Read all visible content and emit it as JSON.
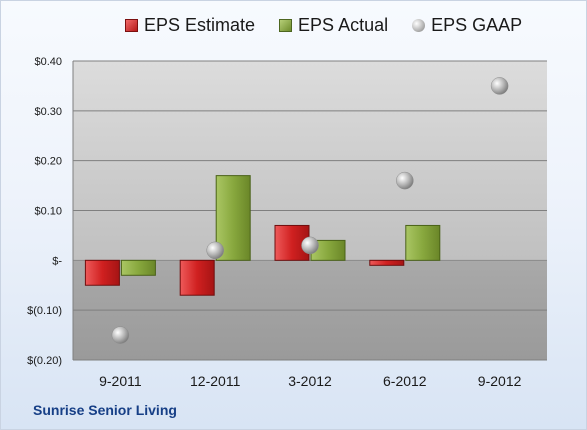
{
  "chart_data": {
    "type": "bar",
    "categories": [
      "9-2011",
      "12-2011",
      "3-2012",
      "6-2012",
      "9-2012"
    ],
    "series": [
      {
        "name": "EPS Estimate",
        "kind": "bar",
        "color": "#c8262a",
        "values": [
          -0.05,
          -0.07,
          0.07,
          -0.01,
          null
        ]
      },
      {
        "name": "EPS Actual",
        "kind": "bar",
        "color": "#88a83e",
        "values": [
          -0.03,
          0.17,
          0.04,
          0.07,
          null
        ]
      },
      {
        "name": "EPS GAAP",
        "kind": "marker",
        "color": "#a8a8a8",
        "values": [
          -0.15,
          0.02,
          0.03,
          0.16,
          0.35
        ]
      }
    ],
    "ylim": [
      -0.2,
      0.4
    ],
    "yticks": [
      {
        "value": 0.4,
        "label": "$0.40"
      },
      {
        "value": 0.3,
        "label": "$0.30"
      },
      {
        "value": 0.2,
        "label": "$0.20"
      },
      {
        "value": 0.1,
        "label": "$0.10"
      },
      {
        "value": 0,
        "label": "$-"
      },
      {
        "value": -0.1,
        "label": "$(0.10)"
      },
      {
        "value": -0.2,
        "label": "$(0.20)"
      }
    ],
    "grid": true,
    "legend": "top"
  },
  "footer": {
    "company": "Sunrise Senior Living"
  }
}
